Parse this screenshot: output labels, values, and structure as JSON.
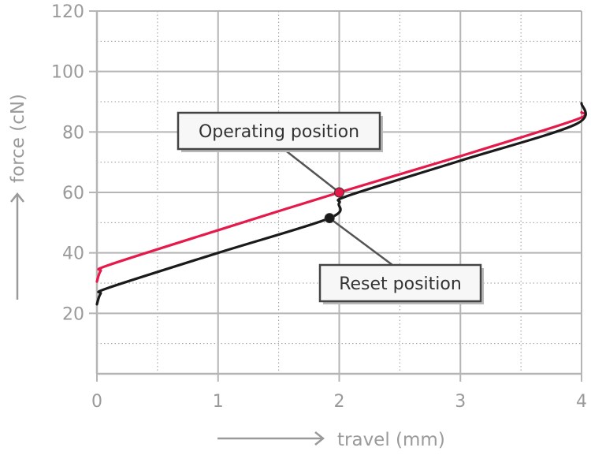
{
  "chart_data": {
    "type": "line",
    "xlabel": "travel (mm)",
    "ylabel": "force (cN)",
    "xlim": [
      0,
      4
    ],
    "ylim": [
      0,
      120
    ],
    "x_ticks": [
      0,
      1,
      2,
      3,
      4
    ],
    "y_ticks": [
      20,
      40,
      60,
      80,
      100,
      120
    ],
    "y_tick_labels": [
      "20",
      "40",
      "60",
      "80",
      "100",
      "120"
    ],
    "x_tick_labels": [
      "0",
      "1",
      "2",
      "3",
      "4"
    ],
    "grid": true,
    "series": [
      {
        "color": "#e5194a",
        "points": [
          [
            0,
            30.5
          ],
          [
            0.03,
            34
          ],
          [
            0.1,
            36
          ],
          [
            1,
            47.5
          ],
          [
            2,
            60
          ],
          [
            3,
            72
          ],
          [
            3.95,
            84
          ],
          [
            4,
            86.5
          ]
        ]
      },
      {
        "color": "#1a1a1a",
        "points": [
          [
            0,
            23
          ],
          [
            0.03,
            26.5
          ],
          [
            0.1,
            28.5
          ],
          [
            1,
            40
          ],
          [
            1.92,
            51.5
          ],
          [
            2.0,
            56.5
          ],
          [
            2.08,
            59
          ],
          [
            3,
            70.5
          ],
          [
            3.95,
            82.5
          ],
          [
            4,
            89.5
          ]
        ]
      }
    ],
    "annotations": [
      {
        "text": "Operating position",
        "point": [
          2,
          60
        ],
        "color": "#e5194a"
      },
      {
        "text": "Reset position",
        "point": [
          1.92,
          51.5
        ],
        "color": "#1a1a1a"
      }
    ]
  }
}
